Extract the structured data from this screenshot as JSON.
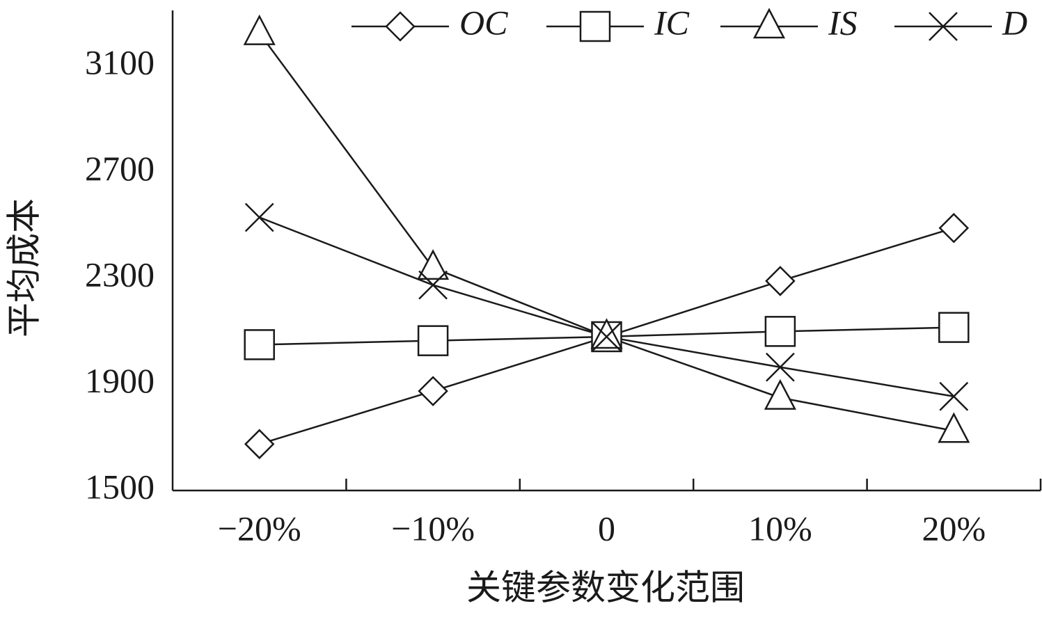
{
  "chart_data": {
    "type": "line",
    "x_label": "关键参数变化范围",
    "y_label": "平均成本",
    "categories": [
      "−20%",
      "−10%",
      "0",
      "10%",
      "20%"
    ],
    "series": [
      {
        "name": "OC",
        "color": "#1a1a1a",
        "marker": "diamond",
        "values": [
          1675,
          1875,
          2080,
          2290,
          2490
        ]
      },
      {
        "name": "IC",
        "color": "#1a1a1a",
        "marker": "square",
        "values": [
          2050,
          2065,
          2080,
          2100,
          2115
        ]
      },
      {
        "name": "IS",
        "color": "#1a1a1a",
        "marker": "triangle",
        "values": [
          3225,
          2340,
          2080,
          1850,
          1725
        ]
      },
      {
        "name": "D",
        "color": "#1a1a1a",
        "marker": "x",
        "values": [
          2530,
          2275,
          2080,
          1965,
          1855
        ]
      }
    ],
    "ylim": [
      1500,
      3300
    ],
    "yticks": [
      1500,
      1900,
      2300,
      2700,
      3100
    ],
    "grid": false,
    "legend": "top-right"
  }
}
